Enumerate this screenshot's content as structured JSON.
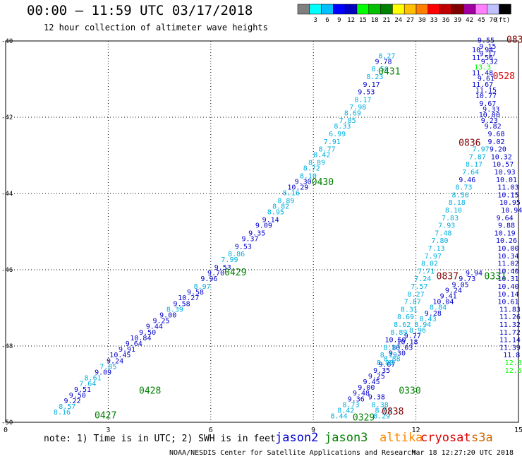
{
  "header": {
    "title": "00:00 – 11:59 UTC 03/17/2018",
    "subtitle": "12 hour collection of altimeter wave heights"
  },
  "colorbar": {
    "unit": "(ft)",
    "colors": [
      "#808080",
      "#00ffff",
      "#00c0ff",
      "#0000ff",
      "#0000c0",
      "#00ff00",
      "#00c000",
      "#008000",
      "#ffff00",
      "#ffc000",
      "#ff8000",
      "#ff0000",
      "#c00000",
      "#800000",
      "#a000a0",
      "#ff80ff",
      "#c0c0ff",
      "#000000"
    ],
    "labels": [
      "3",
      "6",
      "9",
      "12",
      "15",
      "18",
      "21",
      "24",
      "27",
      "30",
      "33",
      "36",
      "39",
      "42",
      "45",
      "70"
    ]
  },
  "footer": {
    "note": "note: 1) Time is in UTC; 2) SWH is in feet",
    "credit": "NOAA/NESDIS Center for Satellite Applications and Research",
    "timestamp": "Mar 18 12:27:20 UTC 2018",
    "satellites": [
      {
        "name": "jason2",
        "color": "#0000cc"
      },
      {
        "name": "jason3",
        "color": "#008000"
      },
      {
        "name": "altika",
        "color": "#ff8800"
      },
      {
        "name": "cryosat",
        "color": "#dd0000"
      },
      {
        "name": "s3a",
        "color": "#cc6600"
      }
    ]
  },
  "chart_data": {
    "type": "scatter",
    "xlim": [
      0,
      15
    ],
    "ylim": [
      -50,
      -40
    ],
    "xticks": [
      "0",
      "3",
      "6",
      "9",
      "12",
      "15"
    ],
    "yticks": [
      "-40",
      "-42",
      "-44",
      "-46",
      "-48",
      "-50"
    ],
    "grid": true,
    "time_labels": [
      {
        "text": "0427",
        "x": 2.6,
        "y": -49.9,
        "color": "#008000"
      },
      {
        "text": "0428",
        "x": 3.9,
        "y": -49.25,
        "color": "#008000"
      },
      {
        "text": "0429",
        "x": 6.4,
        "y": -46.15,
        "color": "#008000"
      },
      {
        "text": "0430",
        "x": 8.95,
        "y": -43.78,
        "color": "#008000"
      },
      {
        "text": "0431",
        "x": 10.9,
        "y": -40.88,
        "color": "#008000"
      },
      {
        "text": "0329",
        "x": 10.15,
        "y": -49.95,
        "color": "#008000"
      },
      {
        "text": "0330",
        "x": 11.5,
        "y": -49.25,
        "color": "#008000"
      },
      {
        "text": "0838",
        "x": 11.0,
        "y": -49.8,
        "color": "#800000"
      },
      {
        "text": "0837",
        "x": 12.6,
        "y": -46.25,
        "color": "#800000"
      },
      {
        "text": "0836",
        "x": 13.25,
        "y": -42.75,
        "color": "#800000"
      },
      {
        "text": "0528",
        "x": 14.25,
        "y": -41.0,
        "color": "#dd0000"
      },
      {
        "text": "083",
        "x": 14.65,
        "y": -40.05,
        "color": "#800000"
      },
      {
        "text": "0331",
        "x": 14.0,
        "y": -46.25,
        "color": "#008000"
      }
    ],
    "series": [
      {
        "name": "jason2",
        "points": [
          [
            1.65,
            -49.8,
            "8.16"
          ],
          [
            1.8,
            -49.65,
            "8.57"
          ],
          [
            1.95,
            -49.5,
            "9.22"
          ],
          [
            2.1,
            -49.35,
            "9.50"
          ],
          [
            2.25,
            -49.2,
            "9.51"
          ],
          [
            2.4,
            -49.05,
            "7.64"
          ],
          [
            2.55,
            -48.9,
            "8.61"
          ],
          [
            2.85,
            -48.75,
            "9.09"
          ],
          [
            3.0,
            -48.6,
            "7.85"
          ],
          [
            3.2,
            -48.45,
            "9.24"
          ],
          [
            3.35,
            -48.3,
            "10.45"
          ],
          [
            3.55,
            -48.15,
            "9.91"
          ],
          [
            3.75,
            -48.0,
            "9.64"
          ],
          [
            3.95,
            -47.85,
            "10.84"
          ],
          [
            4.15,
            -47.7,
            "9.50"
          ],
          [
            4.35,
            -47.55,
            "9.44"
          ],
          [
            4.55,
            -47.4,
            "9.25"
          ],
          [
            4.75,
            -47.25,
            "9.00"
          ],
          [
            4.95,
            -47.1,
            "8.39"
          ],
          [
            5.15,
            -46.95,
            "9.58"
          ],
          [
            5.35,
            -46.8,
            "10.27"
          ],
          [
            5.55,
            -46.65,
            "9.58"
          ],
          [
            5.75,
            -46.5,
            "8.97"
          ],
          [
            5.95,
            -46.3,
            "9.96"
          ],
          [
            6.15,
            -46.15,
            "9.70"
          ],
          [
            6.35,
            -46.0,
            "9.53"
          ],
          [
            6.55,
            -45.8,
            "7.99"
          ],
          [
            6.75,
            -45.65,
            "8.86"
          ],
          [
            6.95,
            -45.45,
            "9.53"
          ],
          [
            7.15,
            -45.25,
            "9.37"
          ],
          [
            7.35,
            -45.1,
            "9.35"
          ],
          [
            7.55,
            -44.9,
            "9.09"
          ],
          [
            7.75,
            -44.75,
            "9.14"
          ],
          [
            7.9,
            -44.55,
            "8.95"
          ],
          [
            8.05,
            -44.4,
            "8.82"
          ],
          [
            8.2,
            -44.25,
            "8.89"
          ],
          [
            8.35,
            -44.05,
            "8.16"
          ],
          [
            8.55,
            -43.9,
            "10.29"
          ],
          [
            8.7,
            -43.75,
            "9.30"
          ],
          [
            8.85,
            -43.6,
            "8.10"
          ],
          [
            8.95,
            -43.4,
            "8.72"
          ],
          [
            9.1,
            -43.25,
            "8.89"
          ],
          [
            9.25,
            -43.05,
            "8.42"
          ],
          [
            9.4,
            -42.9,
            "8.77"
          ],
          [
            9.55,
            -42.7,
            "7.91"
          ],
          [
            9.7,
            -42.5,
            "6.99"
          ],
          [
            9.85,
            -42.3,
            "8.33"
          ],
          [
            10.0,
            -42.15,
            "7.85"
          ],
          [
            10.15,
            -41.95,
            "8.69"
          ],
          [
            10.3,
            -41.8,
            "7.98"
          ],
          [
            10.45,
            -41.6,
            "8.17"
          ],
          [
            10.55,
            -41.4,
            "9.53"
          ],
          [
            10.7,
            -41.2,
            "9.17"
          ],
          [
            10.8,
            -41.0,
            "8.23"
          ],
          [
            10.95,
            -40.8,
            "8.50"
          ],
          [
            11.05,
            -40.6,
            "9.78"
          ],
          [
            11.15,
            -40.45,
            "8.27"
          ]
        ]
      },
      {
        "name": "jason2-b",
        "points": [
          [
            9.75,
            -49.9,
            "8.44"
          ],
          [
            9.95,
            -49.75,
            "8.42"
          ],
          [
            10.1,
            -49.6,
            "8.73"
          ],
          [
            10.25,
            -49.45,
            "9.36"
          ],
          [
            10.4,
            -49.3,
            "9.48"
          ],
          [
            10.55,
            -49.15,
            "9.00"
          ],
          [
            10.7,
            -49.0,
            "9.45"
          ],
          [
            10.85,
            -48.85,
            "9.25"
          ],
          [
            11.0,
            -48.7,
            "9.35"
          ],
          [
            11.15,
            -48.55,
            "9.07"
          ],
          [
            11.3,
            -48.4,
            "8.88"
          ],
          [
            11.45,
            -48.25,
            "9.30"
          ],
          [
            11.6,
            -48.1,
            "10.03"
          ],
          [
            11.75,
            -47.95,
            "10.18"
          ],
          [
            11.9,
            -47.8,
            "9.77"
          ],
          [
            12.05,
            -47.65,
            "8.96"
          ],
          [
            12.2,
            -47.5,
            "8.94"
          ],
          [
            12.35,
            -47.35,
            "8.43"
          ],
          [
            12.5,
            -47.2,
            "9.28"
          ],
          [
            12.65,
            -47.05,
            "8.84"
          ],
          [
            12.8,
            -46.9,
            "10.04"
          ],
          [
            12.95,
            -46.75,
            "9.41"
          ],
          [
            13.1,
            -46.6,
            "9.24"
          ],
          [
            13.3,
            -46.45,
            "9.05"
          ],
          [
            13.5,
            -46.3,
            "9.73"
          ],
          [
            13.7,
            -46.15,
            "9.94"
          ]
        ]
      },
      {
        "name": "cyan-rise",
        "points": [
          [
            10.85,
            -49.4,
            "9.38"
          ],
          [
            10.95,
            -49.6,
            "8.38"
          ],
          [
            11.05,
            -49.75,
            "8.51"
          ],
          [
            11.0,
            -49.9,
            "8.29"
          ],
          [
            11.1,
            -48.5,
            "8.88"
          ],
          [
            11.2,
            -48.3,
            "8.19"
          ],
          [
            11.3,
            -48.1,
            "8.89"
          ],
          [
            11.4,
            -47.9,
            "10.50"
          ],
          [
            11.5,
            -47.7,
            "8.89"
          ],
          [
            11.6,
            -47.5,
            "8.62"
          ],
          [
            11.7,
            -47.3,
            "8.69"
          ],
          [
            11.8,
            -47.1,
            "8.31"
          ],
          [
            11.9,
            -46.9,
            "7.87"
          ],
          [
            12.0,
            -46.7,
            "8.27"
          ],
          [
            12.1,
            -46.5,
            "7.57"
          ],
          [
            12.2,
            -46.3,
            "7.24"
          ],
          [
            12.3,
            -46.1,
            "7.71"
          ],
          [
            12.4,
            -45.9,
            "8.02"
          ],
          [
            12.5,
            -45.7,
            "7.97"
          ],
          [
            12.6,
            -45.5,
            "7.13"
          ],
          [
            12.7,
            -45.3,
            "7.80"
          ],
          [
            12.8,
            -45.1,
            "7.48"
          ],
          [
            12.9,
            -44.9,
            "7.93"
          ],
          [
            13.0,
            -44.7,
            "7.83"
          ],
          [
            13.1,
            -44.5,
            "8.10"
          ],
          [
            13.2,
            -44.3,
            "8.18"
          ],
          [
            13.3,
            -44.1,
            "8.56"
          ],
          [
            13.4,
            -43.9,
            "8.73"
          ],
          [
            13.5,
            -43.7,
            "9.46"
          ],
          [
            13.6,
            -43.5,
            "7.64"
          ],
          [
            13.7,
            -43.3,
            "8.17"
          ],
          [
            13.8,
            -43.1,
            "7.87"
          ],
          [
            13.9,
            -42.9,
            "7.97"
          ]
        ]
      },
      {
        "name": "s3a-column",
        "points": [
          [
            14.05,
            -40.05,
            "9.55"
          ],
          [
            14.1,
            -40.2,
            "9.15"
          ],
          [
            13.95,
            -40.3,
            "10.94"
          ],
          [
            14.1,
            -40.4,
            "9.17"
          ],
          [
            13.95,
            -40.5,
            "11.56"
          ],
          [
            14.15,
            -40.6,
            "9.32"
          ],
          [
            13.95,
            -40.75,
            "13.3"
          ],
          [
            13.95,
            -40.9,
            "11.48"
          ],
          [
            14.05,
            -41.05,
            "9.61"
          ],
          [
            13.95,
            -41.2,
            "11.67"
          ],
          [
            14.05,
            -41.35,
            "11.15"
          ],
          [
            14.05,
            -41.5,
            "10.77"
          ],
          [
            14.1,
            -41.7,
            "9.67"
          ],
          [
            14.2,
            -41.85,
            "9.33"
          ],
          [
            14.15,
            -42.0,
            "10.00"
          ],
          [
            14.15,
            -42.15,
            "9.23"
          ],
          [
            14.25,
            -42.3,
            "9.82"
          ],
          [
            14.35,
            -42.5,
            "9.68"
          ],
          [
            14.35,
            -42.7,
            "9.02"
          ],
          [
            14.4,
            -42.9,
            "9.20"
          ],
          [
            14.5,
            -43.1,
            "10.32"
          ],
          [
            14.55,
            -43.3,
            "10.57"
          ],
          [
            14.6,
            -43.5,
            "10.93"
          ],
          [
            14.65,
            -43.7,
            "10.01"
          ],
          [
            14.7,
            -43.9,
            "11.03"
          ],
          [
            14.7,
            -44.1,
            "10.15"
          ],
          [
            14.75,
            -44.3,
            "10.95"
          ],
          [
            14.8,
            -44.5,
            "10.94"
          ],
          [
            14.6,
            -44.7,
            "9.64"
          ],
          [
            14.65,
            -44.9,
            "9.88"
          ],
          [
            14.6,
            -45.1,
            "10.19"
          ],
          [
            14.65,
            -45.3,
            "10.26"
          ],
          [
            14.7,
            -45.5,
            "10.00"
          ],
          [
            14.7,
            -45.7,
            "10.34"
          ],
          [
            14.7,
            -45.9,
            "11.02"
          ],
          [
            14.7,
            -46.1,
            "10.40"
          ],
          [
            14.7,
            -46.3,
            "10.31"
          ],
          [
            14.7,
            -46.5,
            "10.40"
          ],
          [
            14.7,
            -46.7,
            "10.14"
          ],
          [
            14.7,
            -46.9,
            "10.61"
          ],
          [
            14.75,
            -47.1,
            "11.83"
          ],
          [
            14.75,
            -47.3,
            "11.26"
          ],
          [
            14.75,
            -47.5,
            "11.32"
          ],
          [
            14.75,
            -47.7,
            "11.72"
          ],
          [
            14.75,
            -47.9,
            "11.14"
          ],
          [
            14.75,
            -48.1,
            "11.39"
          ],
          [
            14.8,
            -48.3,
            "11.8"
          ],
          [
            14.85,
            -48.5,
            "12.3"
          ],
          [
            14.85,
            -48.7,
            "12.5"
          ]
        ]
      }
    ]
  }
}
